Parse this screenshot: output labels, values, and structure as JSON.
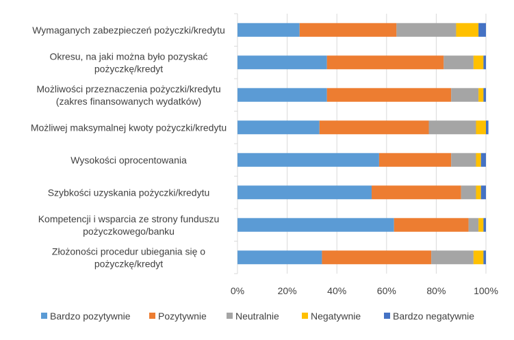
{
  "chart_data": {
    "type": "bar",
    "orientation": "horizontal",
    "stacked": "percent",
    "categories": [
      "Wymaganych zabezpieczeń pożyczki/kredytu",
      "Okresu, na jaki można było pozyskać pożyczkę/kredyt",
      "Możliwości przeznaczenia pożyczki/kredytu (zakres finansowanych wydatków)",
      "Możliwej maksymalnej kwoty pożyczki/kredytu",
      "Wysokości oprocentowania",
      "Szybkości uzyskania pożyczki/kredytu",
      "Kompetencji i wsparcia ze strony funduszu pożyczkowego/banku",
      "Złożoności procedur ubiegania się o pożyczkę/kredyt"
    ],
    "category_lines": [
      [
        "Wymaganych zabezpieczeń pożyczki/kredytu"
      ],
      [
        "Okresu, na jaki można było pozyskać",
        "pożyczkę/kredyt"
      ],
      [
        "Możliwości przeznaczenia pożyczki/kredytu",
        "(zakres finansowanych wydatków)"
      ],
      [
        "Możliwej maksymalnej kwoty pożyczki/kredytu"
      ],
      [
        "Wysokości oprocentowania"
      ],
      [
        "Szybkości uzyskania pożyczki/kredytu"
      ],
      [
        "Kompetencji i wsparcia ze strony funduszu",
        "pożyczkowego/banku"
      ],
      [
        "Złożoności procedur ubiegania się o",
        "pożyczkę/kredyt"
      ]
    ],
    "series": [
      {
        "name": "Bardzo pozytywnie",
        "color": "#5B9BD5",
        "values": [
          25,
          36,
          36,
          33,
          57,
          54,
          63,
          34
        ]
      },
      {
        "name": "Pozytywnie",
        "color": "#ED7D31",
        "values": [
          39,
          47,
          50,
          44,
          29,
          36,
          30,
          44
        ]
      },
      {
        "name": "Neutralnie",
        "color": "#A5A5A5",
        "values": [
          24,
          12,
          11,
          19,
          10,
          6,
          4,
          17
        ]
      },
      {
        "name": "Negatywnie",
        "color": "#FFC000",
        "values": [
          9,
          4,
          2,
          4,
          2,
          2,
          2,
          4
        ]
      },
      {
        "name": "Bardzo negatywnie",
        "color": "#4472C4",
        "values": [
          3,
          1,
          1,
          1,
          2,
          2,
          1,
          1
        ]
      }
    ],
    "xlim": [
      0,
      100
    ],
    "x_ticks": [
      "0%",
      "20%",
      "40%",
      "60%",
      "80%",
      "100%"
    ],
    "grid": true,
    "legend_position": "bottom"
  }
}
